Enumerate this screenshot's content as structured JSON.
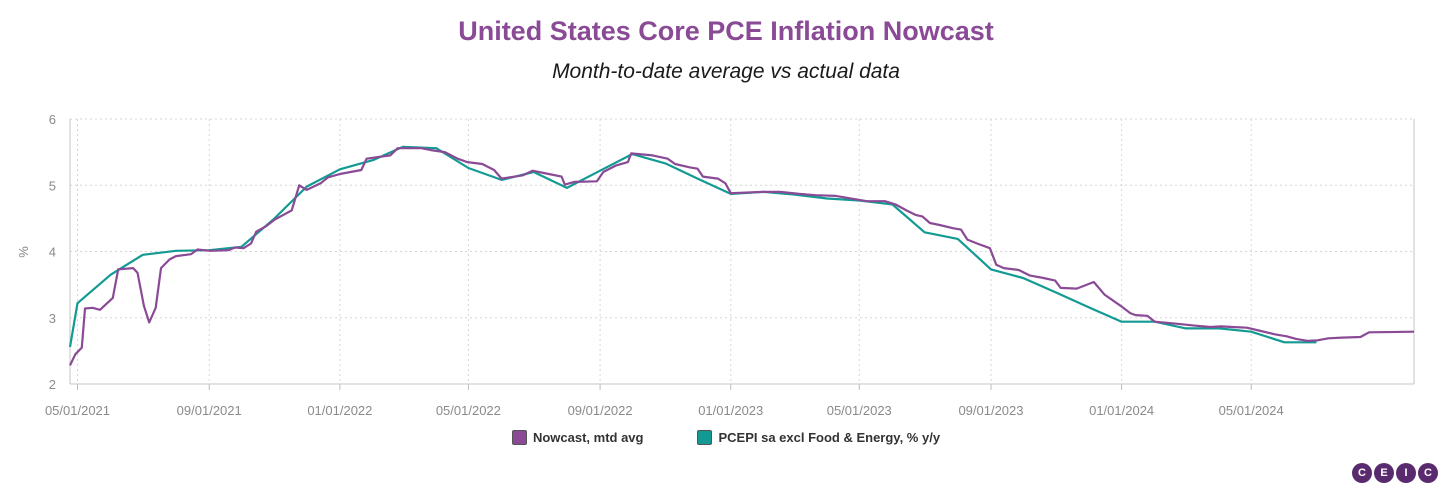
{
  "logo": {
    "letters": [
      "C",
      "E",
      "I",
      "C"
    ]
  },
  "colors": {
    "nowcast": "#8a4a96",
    "actual": "#139a93",
    "title": "#8a4a96"
  },
  "chart_data": {
    "type": "line",
    "title": "United States Core PCE Inflation Nowcast",
    "subtitle": "Month-to-date average vs actual data",
    "ylabel": "%",
    "xlabel": "",
    "ylim": [
      2,
      6
    ],
    "yticks": [
      2,
      3,
      4,
      5,
      6
    ],
    "xlim": [
      "2021-04-24",
      "2024-09-30"
    ],
    "xticks": [
      "2021-05-01",
      "2021-09-01",
      "2022-01-01",
      "2022-05-01",
      "2022-09-01",
      "2023-01-01",
      "2023-05-01",
      "2023-09-01",
      "2024-01-01",
      "2024-05-01"
    ],
    "xtick_labels": [
      "05/01/2021",
      "09/01/2021",
      "01/01/2022",
      "05/01/2022",
      "09/01/2022",
      "01/01/2023",
      "05/01/2023",
      "09/01/2023",
      "01/01/2024",
      "05/01/2024"
    ],
    "grid": true,
    "legend_position": "bottom",
    "series": [
      {
        "name": "Nowcast, mtd avg",
        "color": "#8a4a96",
        "points": [
          [
            "2021-04-24",
            2.28
          ],
          [
            "2021-04-29",
            2.45
          ],
          [
            "2021-05-05",
            2.55
          ],
          [
            "2021-05-08",
            3.14
          ],
          [
            "2021-05-15",
            3.15
          ],
          [
            "2021-05-22",
            3.12
          ],
          [
            "2021-06-03",
            3.3
          ],
          [
            "2021-06-08",
            3.73
          ],
          [
            "2021-06-22",
            3.75
          ],
          [
            "2021-06-26",
            3.68
          ],
          [
            "2021-07-02",
            3.18
          ],
          [
            "2021-07-07",
            2.93
          ],
          [
            "2021-07-13",
            3.15
          ],
          [
            "2021-07-18",
            3.75
          ],
          [
            "2021-07-26",
            3.88
          ],
          [
            "2021-08-01",
            3.93
          ],
          [
            "2021-08-15",
            3.96
          ],
          [
            "2021-08-21",
            4.03
          ],
          [
            "2021-09-02",
            4.01
          ],
          [
            "2021-09-19",
            4.02
          ],
          [
            "2021-09-25",
            4.06
          ],
          [
            "2021-10-03",
            4.05
          ],
          [
            "2021-10-10",
            4.12
          ],
          [
            "2021-10-15",
            4.3
          ],
          [
            "2021-10-24",
            4.38
          ],
          [
            "2021-11-01",
            4.48
          ],
          [
            "2021-11-17",
            4.62
          ],
          [
            "2021-11-24",
            5.0
          ],
          [
            "2021-12-01",
            4.93
          ],
          [
            "2021-12-14",
            5.03
          ],
          [
            "2021-12-21",
            5.12
          ],
          [
            "2022-01-01",
            5.17
          ],
          [
            "2022-01-21",
            5.23
          ],
          [
            "2022-01-26",
            5.4
          ],
          [
            "2022-02-17",
            5.45
          ],
          [
            "2022-02-24",
            5.56
          ],
          [
            "2022-03-18",
            5.56
          ],
          [
            "2022-03-27",
            5.53
          ],
          [
            "2022-04-09",
            5.5
          ],
          [
            "2022-04-21",
            5.4
          ],
          [
            "2022-04-30",
            5.35
          ],
          [
            "2022-05-14",
            5.32
          ],
          [
            "2022-05-25",
            5.23
          ],
          [
            "2022-06-01",
            5.1
          ],
          [
            "2022-06-21",
            5.15
          ],
          [
            "2022-06-30",
            5.22
          ],
          [
            "2022-07-15",
            5.17
          ],
          [
            "2022-07-27",
            5.13
          ],
          [
            "2022-07-30",
            5.01
          ],
          [
            "2022-08-08",
            5.05
          ],
          [
            "2022-08-29",
            5.06
          ],
          [
            "2022-09-04",
            5.2
          ],
          [
            "2022-09-16",
            5.3
          ],
          [
            "2022-09-27",
            5.35
          ],
          [
            "2022-09-30",
            5.48
          ],
          [
            "2022-10-20",
            5.45
          ],
          [
            "2022-11-03",
            5.4
          ],
          [
            "2022-11-10",
            5.32
          ],
          [
            "2022-11-24",
            5.27
          ],
          [
            "2022-12-01",
            5.25
          ],
          [
            "2022-12-06",
            5.13
          ],
          [
            "2022-12-20",
            5.1
          ],
          [
            "2022-12-27",
            5.03
          ],
          [
            "2023-01-01",
            4.88
          ],
          [
            "2023-01-31",
            4.9
          ],
          [
            "2023-02-16",
            4.9
          ],
          [
            "2023-03-06",
            4.87
          ],
          [
            "2023-03-21",
            4.85
          ],
          [
            "2023-04-09",
            4.84
          ],
          [
            "2023-04-16",
            4.82
          ],
          [
            "2023-04-27",
            4.79
          ],
          [
            "2023-05-08",
            4.76
          ],
          [
            "2023-05-25",
            4.76
          ],
          [
            "2023-06-04",
            4.71
          ],
          [
            "2023-06-14",
            4.62
          ],
          [
            "2023-06-23",
            4.55
          ],
          [
            "2023-06-29",
            4.53
          ],
          [
            "2023-07-06",
            4.43
          ],
          [
            "2023-07-15",
            4.4
          ],
          [
            "2023-07-28",
            4.35
          ],
          [
            "2023-08-04",
            4.33
          ],
          [
            "2023-08-10",
            4.18
          ],
          [
            "2023-08-19",
            4.12
          ],
          [
            "2023-08-31",
            4.05
          ],
          [
            "2023-09-06",
            3.8
          ],
          [
            "2023-09-13",
            3.75
          ],
          [
            "2023-09-27",
            3.72
          ],
          [
            "2023-10-07",
            3.64
          ],
          [
            "2023-10-20",
            3.6
          ],
          [
            "2023-10-31",
            3.56
          ],
          [
            "2023-11-05",
            3.45
          ],
          [
            "2023-11-20",
            3.44
          ],
          [
            "2023-12-06",
            3.54
          ],
          [
            "2023-12-16",
            3.35
          ],
          [
            "2023-12-31",
            3.18
          ],
          [
            "2024-01-09",
            3.07
          ],
          [
            "2024-01-14",
            3.04
          ],
          [
            "2024-01-25",
            3.03
          ],
          [
            "2024-02-01",
            2.94
          ],
          [
            "2024-02-21",
            2.91
          ],
          [
            "2024-03-10",
            2.88
          ],
          [
            "2024-03-24",
            2.86
          ],
          [
            "2024-04-03",
            2.87
          ],
          [
            "2024-04-13",
            2.86
          ],
          [
            "2024-04-27",
            2.85
          ],
          [
            "2024-05-10",
            2.8
          ],
          [
            "2024-05-23",
            2.75
          ],
          [
            "2024-06-03",
            2.72
          ],
          [
            "2024-06-12",
            2.68
          ],
          [
            "2024-06-23",
            2.65
          ],
          [
            "2024-07-02",
            2.66
          ],
          [
            "2024-07-12",
            2.69
          ],
          [
            "2024-07-25",
            2.7
          ],
          [
            "2024-08-11",
            2.71
          ],
          [
            "2024-08-19",
            2.78
          ],
          [
            "2024-09-30",
            2.79
          ]
        ]
      },
      {
        "name": "PCEPI sa excl Food & Energy, % y/y",
        "color": "#139a93",
        "points": [
          [
            "2021-04-24",
            2.56
          ],
          [
            "2021-05-01",
            3.22
          ],
          [
            "2021-06-01",
            3.65
          ],
          [
            "2021-07-01",
            3.95
          ],
          [
            "2021-08-01",
            4.01
          ],
          [
            "2021-09-01",
            4.02
          ],
          [
            "2021-10-01",
            4.07
          ],
          [
            "2021-11-01",
            4.5
          ],
          [
            "2021-12-01",
            4.98
          ],
          [
            "2022-01-01",
            5.24
          ],
          [
            "2022-02-01",
            5.38
          ],
          [
            "2022-03-01",
            5.58
          ],
          [
            "2022-04-01",
            5.56
          ],
          [
            "2022-05-01",
            5.26
          ],
          [
            "2022-06-01",
            5.08
          ],
          [
            "2022-07-01",
            5.2
          ],
          [
            "2022-08-01",
            4.96
          ],
          [
            "2022-09-01",
            5.22
          ],
          [
            "2022-10-01",
            5.47
          ],
          [
            "2022-11-01",
            5.33
          ],
          [
            "2022-12-01",
            5.1
          ],
          [
            "2023-01-01",
            4.87
          ],
          [
            "2023-02-01",
            4.9
          ],
          [
            "2023-03-01",
            4.86
          ],
          [
            "2023-04-01",
            4.8
          ],
          [
            "2023-05-01",
            4.77
          ],
          [
            "2023-06-01",
            4.71
          ],
          [
            "2023-07-01",
            4.29
          ],
          [
            "2023-08-01",
            4.19
          ],
          [
            "2023-09-01",
            3.73
          ],
          [
            "2023-10-01",
            3.6
          ],
          [
            "2023-11-01",
            3.38
          ],
          [
            "2023-12-01",
            3.16
          ],
          [
            "2024-01-01",
            2.94
          ],
          [
            "2024-02-01",
            2.94
          ],
          [
            "2024-03-01",
            2.84
          ],
          [
            "2024-04-01",
            2.84
          ],
          [
            "2024-05-01",
            2.79
          ],
          [
            "2024-06-01",
            2.63
          ],
          [
            "2024-07-01",
            2.63
          ]
        ]
      }
    ]
  }
}
